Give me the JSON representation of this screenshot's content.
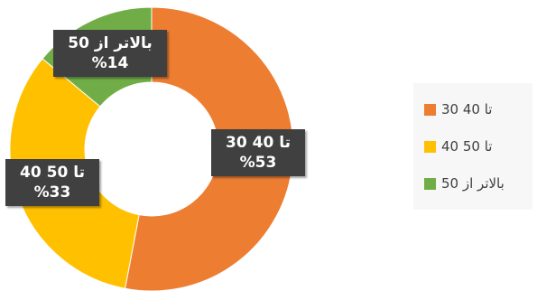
{
  "chart_data": {
    "type": "pie",
    "style": "doughnut",
    "slices": [
      {
        "name": "30 تا 40",
        "value": 53,
        "percent_label": "%53",
        "color": "#ED7D31"
      },
      {
        "name": "40 تا 50",
        "value": 33,
        "percent_label": "%33",
        "color": "#FFC000"
      },
      {
        "name": "بالاتر از 50",
        "value": 14,
        "percent_label": "%14",
        "color": "#70AD47"
      }
    ],
    "legend_position": "right"
  }
}
